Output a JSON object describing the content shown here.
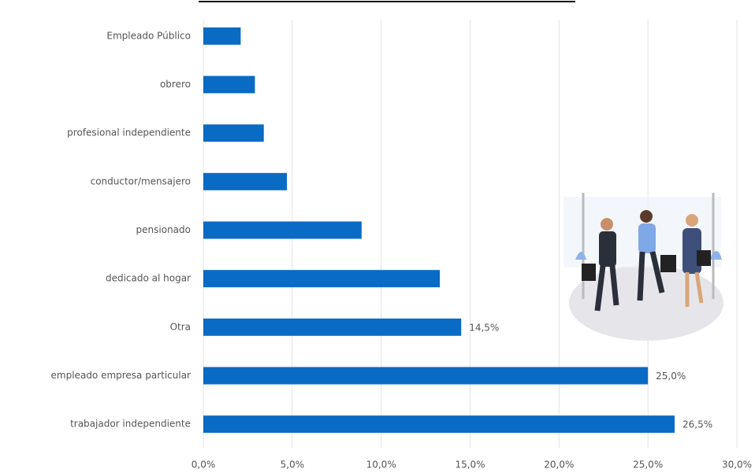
{
  "chart_data": {
    "type": "bar",
    "orientation": "horizontal",
    "color": "#0a6bc4",
    "categories": [
      "Empleado Público",
      "obrero",
      "profesional independiente",
      "conductor/mensajero",
      "pensionado",
      "dedicado al hogar",
      "Otra",
      "empleado empresa particular",
      "trabajador independiente"
    ],
    "values": [
      2.1,
      2.9,
      3.4,
      4.7,
      8.9,
      13.3,
      14.5,
      25.0,
      26.5
    ],
    "value_labels": [
      null,
      null,
      null,
      null,
      null,
      null,
      "14,5%",
      "25,0%",
      "26,5%"
    ],
    "xlim": [
      0,
      30
    ],
    "xticks": [
      {
        "value": 0,
        "label": "0,0%"
      },
      {
        "value": 5,
        "label": "5,0%"
      },
      {
        "value": 10,
        "label": "10,0%"
      },
      {
        "value": 15,
        "label": "15,0%"
      },
      {
        "value": 20,
        "label": "20,0%"
      },
      {
        "value": 25,
        "label": "25,0%"
      },
      {
        "value": 30,
        "label": "30,0%"
      }
    ],
    "grid": true
  }
}
